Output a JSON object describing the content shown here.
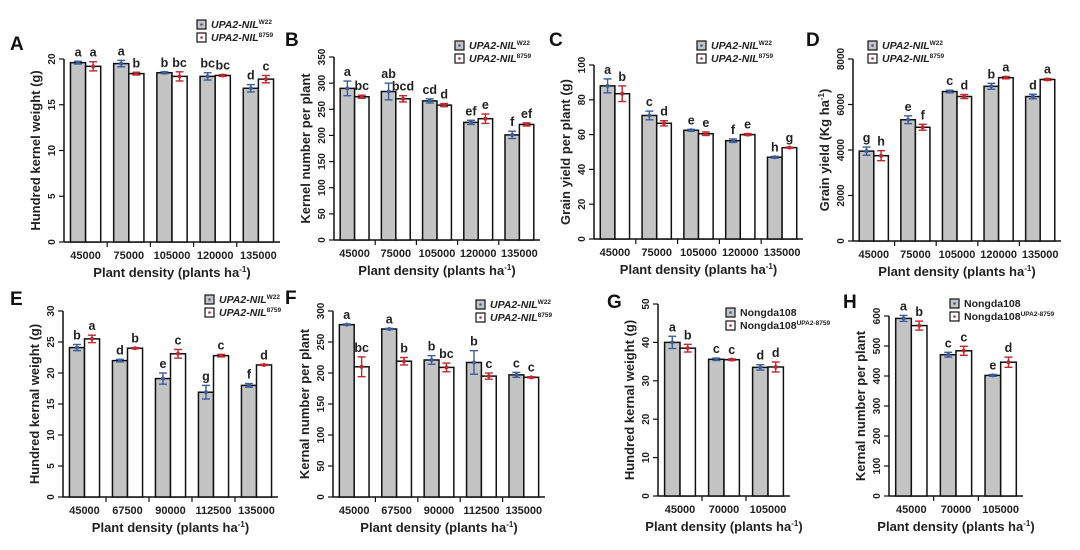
{
  "figure": {
    "x_axis_label": "Plant density (plants ha",
    "x_axis_label_sup": "-1",
    "x_axis_label_end": ")"
  },
  "chart_data": [
    {
      "panel": "A",
      "type": "bar",
      "ylabel": "Hundred kernel weight (g)",
      "xlabel": "Plant density (plants ha-1)",
      "categories": [
        "45000",
        "75000",
        "105000",
        "120000",
        "135000"
      ],
      "ylim": [
        0,
        20
      ],
      "yticks": [
        0,
        5,
        10,
        15,
        20
      ],
      "legend": "top-right",
      "series": [
        {
          "name": "UPA2-NIL",
          "sup": "W22",
          "italic_prefix": "UPA2",
          "values": [
            19.6,
            19.5,
            18.5,
            18.1,
            16.8
          ],
          "errors": [
            0.15,
            0.35,
            0.1,
            0.4,
            0.4
          ],
          "letters": [
            "a",
            "a",
            "b",
            "bc",
            "d"
          ]
        },
        {
          "name": "UPA2-NIL",
          "sup": "8759",
          "italic_prefix": "UPA2",
          "values": [
            19.2,
            18.4,
            18.1,
            18.2,
            17.8
          ],
          "errors": [
            0.5,
            0.15,
            0.5,
            0.1,
            0.4
          ],
          "letters": [
            "a",
            "b",
            "bc",
            "bc",
            "c"
          ]
        }
      ]
    },
    {
      "panel": "B",
      "type": "bar",
      "ylabel": "Kernel number per plant",
      "xlabel": "Plant density (plants ha-1)",
      "categories": [
        "45000",
        "75000",
        "105000",
        "120000",
        "135000"
      ],
      "ylim": [
        0,
        350
      ],
      "yticks": [
        0,
        50,
        100,
        150,
        200,
        250,
        300,
        350
      ],
      "legend": "top-right",
      "series": [
        {
          "name": "UPA2-NIL",
          "sup": "W22",
          "italic_prefix": "UPA2",
          "values": [
            290,
            284,
            266,
            225,
            201
          ],
          "errors": [
            14,
            16,
            4,
            4,
            7
          ],
          "letters": [
            "a",
            "ab",
            "cd",
            "ef",
            "f"
          ]
        },
        {
          "name": "UPA2-NIL",
          "sup": "8759",
          "italic_prefix": "UPA2",
          "values": [
            274,
            270,
            258,
            232,
            221
          ],
          "errors": [
            3,
            6,
            3,
            9,
            3
          ],
          "letters": [
            "bc",
            "bcd",
            "d",
            "e",
            "ef"
          ]
        }
      ]
    },
    {
      "panel": "C",
      "type": "bar",
      "ylabel": "Grain yield per plant (g)",
      "xlabel": "Plant density (plants ha-1)",
      "categories": [
        "45000",
        "75000",
        "105000",
        "120000",
        "135000"
      ],
      "ylim": [
        0,
        100
      ],
      "yticks": [
        0,
        20,
        40,
        60,
        80,
        100
      ],
      "legend": "top-right",
      "series": [
        {
          "name": "UPA2-NIL",
          "sup": "W22",
          "italic_prefix": "UPA2",
          "values": [
            88,
            71,
            62.5,
            56.5,
            47
          ],
          "errors": [
            4,
            2.5,
            0.5,
            1,
            0.5
          ],
          "letters": [
            "a",
            "c",
            "e",
            "f",
            "h"
          ]
        },
        {
          "name": "UPA2-NIL",
          "sup": "8759",
          "italic_prefix": "UPA2",
          "values": [
            83.5,
            66.5,
            60.5,
            60,
            52.5
          ],
          "errors": [
            4.5,
            1.5,
            1,
            0.5,
            0.3
          ],
          "letters": [
            "b",
            "d",
            "e",
            "e",
            "g"
          ]
        }
      ]
    },
    {
      "panel": "D",
      "type": "bar",
      "ylabel": "Grain yield (Kg ha-1)",
      "xlabel": "Plant density (plants ha-1)",
      "categories": [
        "45000",
        "75000",
        "105000",
        "120000",
        "135000"
      ],
      "ylim": [
        0,
        8000
      ],
      "yticks": [
        0,
        2000,
        4000,
        6000,
        8000
      ],
      "legend": "top-left",
      "series": [
        {
          "name": "UPA2-NIL",
          "sup": "W22",
          "italic_prefix": "UPA2",
          "values": [
            3950,
            5330,
            6570,
            6800,
            6350
          ],
          "errors": [
            180,
            170,
            60,
            130,
            100
          ],
          "letters": [
            "g",
            "e",
            "c",
            "b",
            "d"
          ]
        },
        {
          "name": "UPA2-NIL",
          "sup": "8759",
          "italic_prefix": "UPA2",
          "values": [
            3750,
            5000,
            6350,
            7180,
            7100
          ],
          "errors": [
            220,
            130,
            90,
            50,
            40
          ],
          "letters": [
            "h",
            "f",
            "d",
            "a",
            "a"
          ]
        }
      ]
    },
    {
      "panel": "E",
      "type": "bar",
      "ylabel": "Hundred kernal weight (g)",
      "xlabel": "Plant density (plants ha-1)",
      "categories": [
        "45000",
        "67500",
        "90000",
        "112500",
        "135000"
      ],
      "ylim": [
        0,
        30
      ],
      "yticks": [
        0,
        5,
        10,
        15,
        20,
        25,
        30
      ],
      "legend": "top-right",
      "series": [
        {
          "name": "UPA2-NIL",
          "sup": "W22",
          "italic_prefix": "UPA2",
          "values": [
            24.1,
            22,
            19.1,
            16.9,
            18
          ],
          "errors": [
            0.5,
            0.2,
            0.9,
            1.1,
            0.3
          ],
          "letters": [
            "b",
            "d",
            "e",
            "g",
            "f"
          ]
        },
        {
          "name": "UPA2-NIL",
          "sup": "8759",
          "italic_prefix": "UPA2",
          "values": [
            25.5,
            24,
            23.1,
            22.8,
            21.3
          ],
          "errors": [
            0.6,
            0.1,
            0.7,
            0.2,
            0.1
          ],
          "letters": [
            "a",
            "b",
            "c",
            "c",
            "d"
          ]
        }
      ]
    },
    {
      "panel": "F",
      "type": "bar",
      "ylabel": "Kernal number per plant",
      "xlabel": "Plant density (plants ha-1)",
      "categories": [
        "45000",
        "67500",
        "90000",
        "112500",
        "135000"
      ],
      "ylim": [
        0,
        300
      ],
      "yticks": [
        0,
        50,
        100,
        150,
        200,
        250,
        300
      ],
      "legend": "top-right",
      "series": [
        {
          "name": "UPA2-NIL",
          "sup": "W22",
          "italic_prefix": "UPA2",
          "values": [
            278,
            271,
            221,
            217,
            197
          ],
          "errors": [
            1,
            1,
            7,
            19,
            4
          ],
          "letters": [
            "a",
            "a",
            "b",
            "b",
            "c"
          ]
        },
        {
          "name": "UPA2-NIL",
          "sup": "8759",
          "italic_prefix": "UPA2",
          "values": [
            210,
            219,
            209,
            195,
            193
          ],
          "errors": [
            16,
            6,
            7,
            5,
            1
          ],
          "letters": [
            "bc",
            "b",
            "bc",
            "c",
            "c"
          ]
        }
      ]
    },
    {
      "panel": "G",
      "type": "bar",
      "ylabel": "Hundred kernal weight (g)",
      "xlabel": "Plant density (plants ha-1)",
      "categories": [
        "45000",
        "70000",
        "105000"
      ],
      "ylim": [
        0,
        50
      ],
      "yticks": [
        0,
        10,
        20,
        30,
        40,
        50
      ],
      "legend": "top-right",
      "series": [
        {
          "name": "Nongda108",
          "sup": "",
          "italic_prefix": "",
          "values": [
            40,
            35.6,
            33.5
          ],
          "errors": [
            1.6,
            0.3,
            0.7
          ],
          "letters": [
            "a",
            "c",
            "d"
          ]
        },
        {
          "name": "Nongda108",
          "sup": "UPA2-8759",
          "italic_prefix": "",
          "values": [
            38.5,
            35.5,
            33.6
          ],
          "errors": [
            1,
            0.2,
            1.3
          ],
          "letters": [
            "b",
            "c",
            "d"
          ]
        }
      ]
    },
    {
      "panel": "H",
      "type": "bar",
      "ylabel": "Kernal number per plant",
      "xlabel": "Plant density (plants ha-1)",
      "categories": [
        "45000",
        "70000",
        "105000"
      ],
      "ylim": [
        0,
        600
      ],
      "yticks": [
        0,
        100,
        200,
        300,
        400,
        500,
        600
      ],
      "legend": "top-right",
      "series": [
        {
          "name": "Nongda108",
          "sup": "",
          "italic_prefix": "",
          "values": [
            592,
            471,
            402
          ],
          "errors": [
            10,
            8,
            3
          ],
          "letters": [
            "a",
            "c",
            "e"
          ]
        },
        {
          "name": "Nongda108",
          "sup": "UPA2-8759",
          "italic_prefix": "",
          "values": [
            568,
            484,
            446
          ],
          "errors": [
            15,
            15,
            17
          ],
          "letters": [
            "b",
            "c",
            "d"
          ]
        }
      ]
    }
  ],
  "colors": {
    "bar_series1": "#c4c4c4",
    "bar_series2": "#ffffff",
    "outline": "#111111",
    "error_series1": "#3b5e9c",
    "error_series2": "#c1272d"
  }
}
